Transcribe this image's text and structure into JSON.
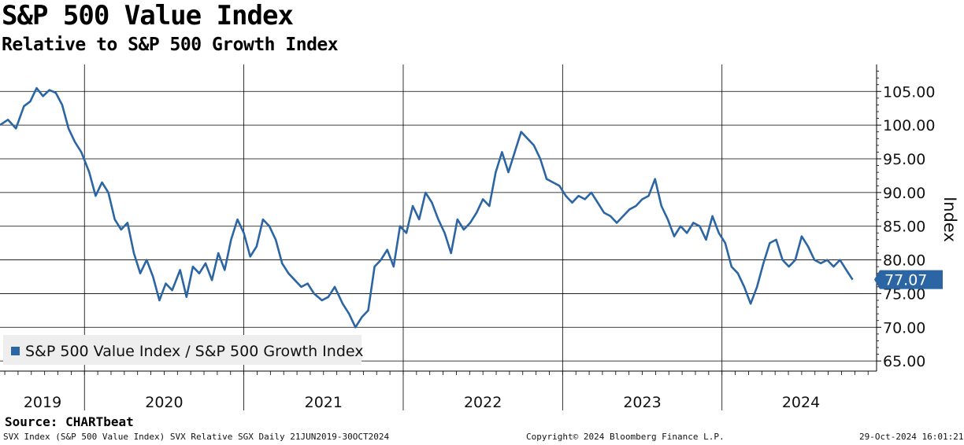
{
  "header": {
    "title": "S&P 500 Value Index",
    "subtitle": "Relative to S&P 500 Growth Index"
  },
  "source": "Source: CHARTbeat",
  "footer": {
    "left": "SVX Index (S&P 500 Value Index) SVX Relative SGX  Daily 21JUN2019-30OCT2024",
    "center": "Copyright© 2024 Bloomberg Finance L.P.",
    "right": "29-Oct-2024 16:01:21"
  },
  "legend": {
    "label": "S&P 500 Value Index / S&P 500 Growth Index"
  },
  "colors": {
    "line": "#2b65a3",
    "last_label_bg": "#2b65a3",
    "grid": "#000000"
  },
  "chart_data": {
    "type": "line",
    "title": "S&P 500 Value Index",
    "subtitle": "Relative to S&P 500 Growth Index",
    "ylabel": "Index",
    "xlabel": "",
    "ylim": [
      63.5,
      109
    ],
    "xlim": [
      2019.47,
      2024.97
    ],
    "yticks": [
      65,
      70,
      75,
      80,
      85,
      90,
      95,
      100,
      105
    ],
    "ytick_labels": [
      "65.00",
      "70.00",
      "75.00",
      "80.00",
      "85.00",
      "90.00",
      "95.00",
      "100.00",
      "105.00"
    ],
    "year_labels": [
      "2019",
      "2020",
      "2021",
      "2022",
      "2023",
      "2024"
    ],
    "last_value_label": "77.07",
    "grid": true,
    "legend_position": "bottom-left",
    "series": [
      {
        "name": "S&P 500 Value Index / S&P 500 Growth Index",
        "x": [
          2019.47,
          2019.52,
          2019.57,
          2019.62,
          2019.66,
          2019.7,
          2019.74,
          2019.78,
          2019.82,
          2019.86,
          2019.9,
          2019.94,
          2019.98,
          2020.03,
          2020.07,
          2020.11,
          2020.15,
          2020.19,
          2020.23,
          2020.27,
          2020.31,
          2020.35,
          2020.39,
          2020.43,
          2020.47,
          2020.51,
          2020.55,
          2020.6,
          2020.64,
          2020.68,
          2020.72,
          2020.76,
          2020.8,
          2020.84,
          2020.88,
          2020.92,
          2020.96,
          2021.0,
          2021.04,
          2021.08,
          2021.12,
          2021.16,
          2021.2,
          2021.24,
          2021.28,
          2021.32,
          2021.36,
          2021.4,
          2021.44,
          2021.49,
          2021.53,
          2021.57,
          2021.62,
          2021.66,
          2021.7,
          2021.74,
          2021.78,
          2021.82,
          2021.86,
          2021.9,
          2021.94,
          2021.98,
          2022.02,
          2022.06,
          2022.1,
          2022.14,
          2022.18,
          2022.22,
          2022.26,
          2022.3,
          2022.34,
          2022.38,
          2022.42,
          2022.46,
          2022.5,
          2022.54,
          2022.58,
          2022.62,
          2022.66,
          2022.7,
          2022.74,
          2022.78,
          2022.82,
          2022.86,
          2022.9,
          2022.94,
          2022.98,
          2023.02,
          2023.06,
          2023.1,
          2023.14,
          2023.18,
          2023.22,
          2023.26,
          2023.3,
          2023.34,
          2023.38,
          2023.42,
          2023.46,
          2023.5,
          2023.54,
          2023.58,
          2023.62,
          2023.66,
          2023.7,
          2023.74,
          2023.78,
          2023.82,
          2023.86,
          2023.9,
          2023.94,
          2023.98,
          2024.02,
          2024.06,
          2024.1,
          2024.14,
          2024.18,
          2024.22,
          2024.26,
          2024.3,
          2024.34,
          2024.38,
          2024.42,
          2024.46,
          2024.5,
          2024.54,
          2024.58,
          2024.62,
          2024.66,
          2024.7,
          2024.74,
          2024.78,
          2024.82
        ],
        "values": [
          100.0,
          100.8,
          99.5,
          102.8,
          103.5,
          105.5,
          104.3,
          105.2,
          104.8,
          103.0,
          99.5,
          97.5,
          96.0,
          93.0,
          89.5,
          91.5,
          90.0,
          86.0,
          84.5,
          85.5,
          81.0,
          78.0,
          80.0,
          77.5,
          74.0,
          76.5,
          75.5,
          78.5,
          74.5,
          79.0,
          78.0,
          79.5,
          77.0,
          81.0,
          78.5,
          83.0,
          86.0,
          84.0,
          80.5,
          82.0,
          86.0,
          85.0,
          83.0,
          79.5,
          78.0,
          77.0,
          76.0,
          76.5,
          75.0,
          74.0,
          74.5,
          76.0,
          73.5,
          72.0,
          70.0,
          71.5,
          72.5,
          79.0,
          80.0,
          81.5,
          79.0,
          85.0,
          84.0,
          88.0,
          86.0,
          90.0,
          88.5,
          86.0,
          84.0,
          81.0,
          86.0,
          84.5,
          85.5,
          87.0,
          89.0,
          88.0,
          93.0,
          96.0,
          93.0,
          96.0,
          99.0,
          98.0,
          97.0,
          95.0,
          92.0,
          91.5,
          91.0,
          89.5,
          88.5,
          89.5,
          89.0,
          90.0,
          88.5,
          87.0,
          86.5,
          85.5,
          86.5,
          87.5,
          88.0,
          89.0,
          89.5,
          92.0,
          88.0,
          86.0,
          83.5,
          85.0,
          84.0,
          85.5,
          85.0,
          83.0,
          86.5,
          84.0,
          82.5,
          79.0,
          78.0,
          76.0,
          73.5,
          76.0,
          79.5,
          82.5,
          83.0,
          80.0,
          79.0,
          80.0,
          83.5,
          82.0,
          80.0,
          79.5,
          80.0,
          79.0,
          80.0,
          78.5,
          77.07
        ]
      }
    ]
  }
}
